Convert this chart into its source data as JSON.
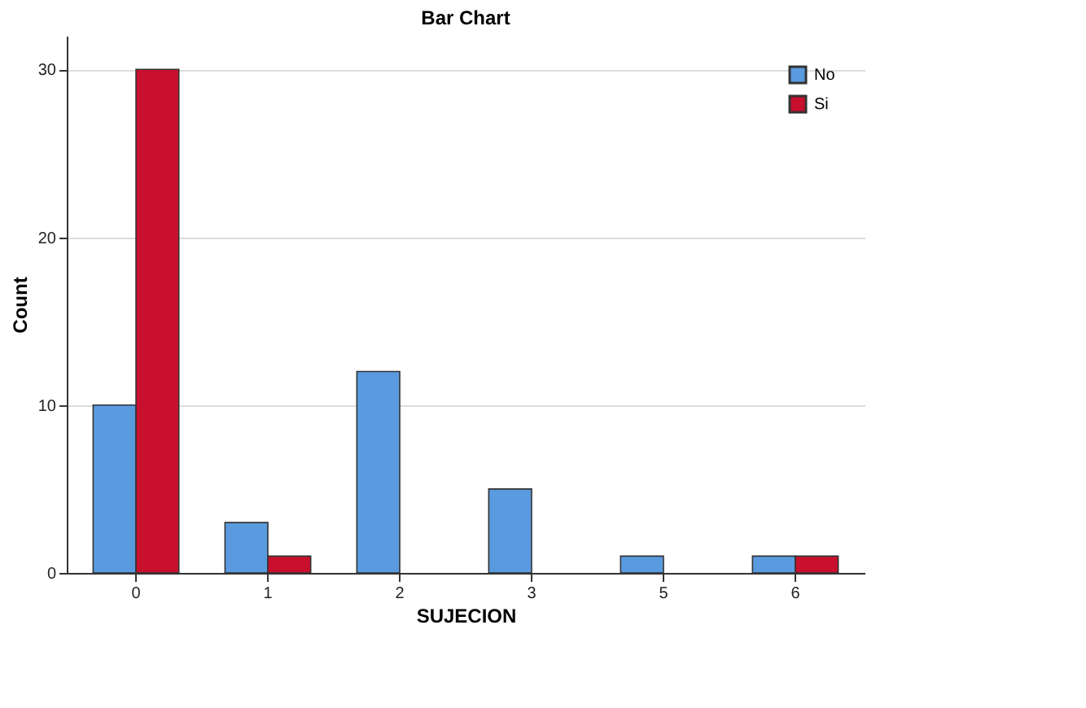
{
  "chart_data": {
    "type": "bar",
    "title": "Bar Chart",
    "xlabel": "SUJECION",
    "ylabel": "Count",
    "categories": [
      "0",
      "1",
      "2",
      "3",
      "5",
      "6"
    ],
    "series": [
      {
        "name": "No",
        "color": "#5a9be0",
        "values": [
          10,
          3,
          12,
          5,
          1,
          1
        ]
      },
      {
        "name": "Si",
        "color": "#c8102e",
        "values": [
          30,
          1,
          null,
          null,
          null,
          1
        ]
      }
    ],
    "ylim": [
      0,
      32
    ],
    "yticks": [
      0,
      10,
      20,
      30
    ],
    "grid": "y",
    "legend": "top right"
  }
}
